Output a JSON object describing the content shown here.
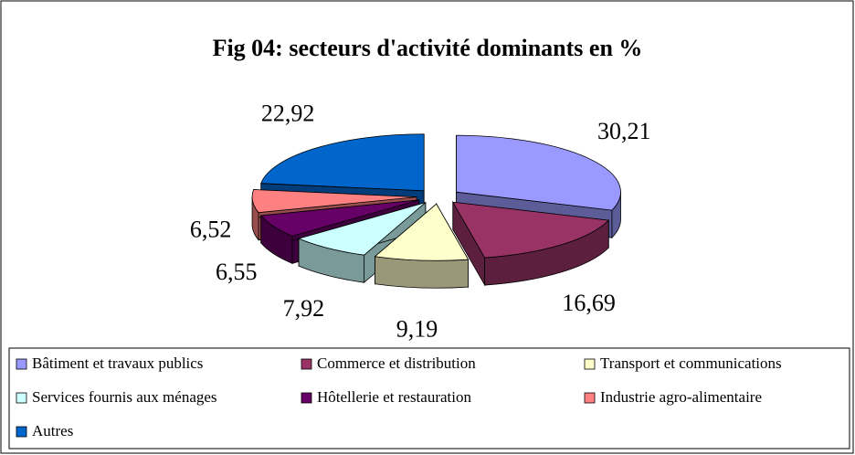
{
  "chart_data": {
    "type": "pie3d",
    "title": "Fig 04: secteurs d'activité dominants en %",
    "categories": [
      "Bâtiment et travaux publics",
      "Commerce et distribution",
      "Transport et communications",
      "Services fournis aux ménages",
      "Hôtellerie et restauration",
      "Industrie agro-alimentaire",
      "Autres"
    ],
    "values": [
      30.21,
      16.69,
      9.19,
      7.92,
      6.55,
      6.52,
      22.92
    ],
    "value_labels": [
      "30,21",
      "16,69",
      "9,19",
      "7,92",
      "6,55",
      "6,52",
      "22,92"
    ],
    "colors": [
      "#9999ff",
      "#993366",
      "#ffffcc",
      "#ccffff",
      "#660066",
      "#ff8080",
      "#0066cc"
    ],
    "legend": "bottom"
  }
}
